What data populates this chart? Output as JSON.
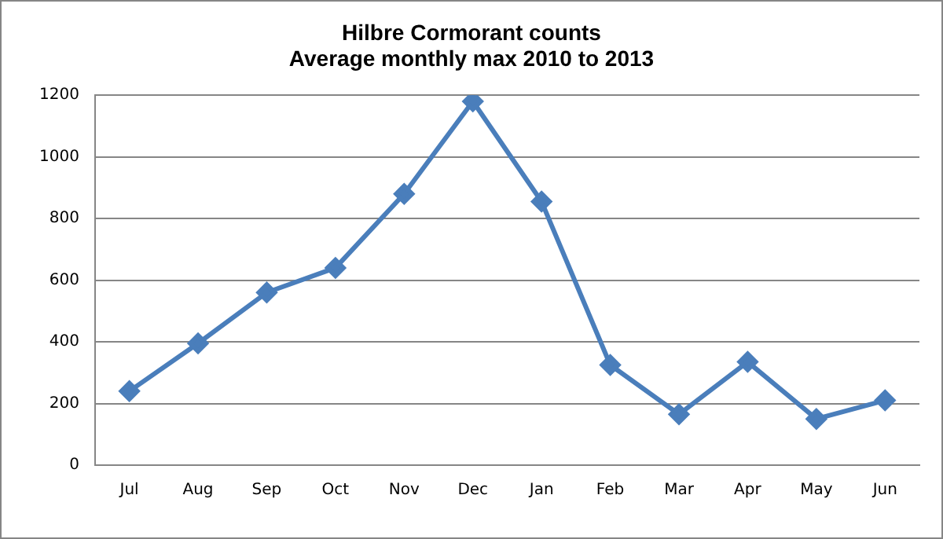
{
  "chart_data": {
    "type": "line",
    "title": "Hilbre Cormorant counts\nAverage monthly max 2010 to 2013",
    "categories": [
      "Jul",
      "Aug",
      "Sep",
      "Oct",
      "Nov",
      "Dec",
      "Jan",
      "Feb",
      "Mar",
      "Apr",
      "May",
      "Jun"
    ],
    "series": [
      {
        "color": "#4a7ebb",
        "values": [
          240,
          395,
          560,
          640,
          880,
          1180,
          855,
          325,
          165,
          335,
          150,
          210
        ]
      }
    ],
    "ylim": [
      0,
      1200
    ],
    "yticks": [
      0,
      200,
      400,
      600,
      800,
      1000,
      1200
    ],
    "grid": "y",
    "marker": "diamond",
    "line_style": "solid",
    "legend": false
  }
}
